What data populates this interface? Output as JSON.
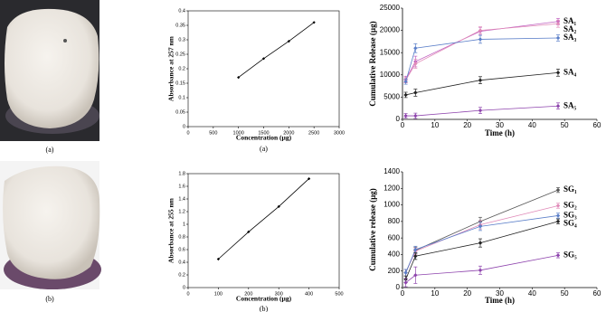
{
  "photo_captions": [
    "(a)",
    "(b)"
  ],
  "chart_data": [
    {
      "type": "line",
      "ylabel": "Absorbance at 257 nm",
      "xlabel": "Concentration (µg)",
      "caption": "(a)",
      "x": [
        1000,
        1500,
        2000,
        2500
      ],
      "series": [
        {
          "color": "#000000",
          "values": [
            0.17,
            0.235,
            0.295,
            0.36
          ]
        }
      ],
      "xlim": [
        0,
        3000
      ],
      "xticks": [
        0,
        500,
        1000,
        1500,
        2000,
        2500,
        3000
      ],
      "ylim": [
        0,
        0.4
      ],
      "yticks": [
        0,
        0.05,
        0.1,
        0.15,
        0.2,
        0.25,
        0.3,
        0.35,
        0.4
      ]
    },
    {
      "type": "line",
      "ylabel": "Absorbance at 255 nm",
      "xlabel": "Concentration (µg)",
      "caption": "(b)",
      "x": [
        100,
        200,
        300,
        400
      ],
      "series": [
        {
          "color": "#000000",
          "values": [
            0.45,
            0.88,
            1.28,
            1.72
          ]
        }
      ],
      "xlim": [
        0,
        500
      ],
      "xticks": [
        0,
        100,
        200,
        300,
        400,
        500
      ],
      "ylim": [
        0,
        1.8
      ],
      "yticks": [
        0,
        0.2,
        0.4,
        0.6,
        0.8,
        1,
        1.2,
        1.4,
        1.6,
        1.8
      ]
    },
    {
      "type": "line",
      "ylabel": "Cumulative Release (µg)",
      "xlabel": "Time (h)",
      "x": [
        1,
        4,
        24,
        48
      ],
      "series": [
        {
          "name": "SA₁",
          "color": "#c060c0",
          "values": [
            9000,
            13000,
            19800,
            22000
          ],
          "errors": [
            700,
            1200,
            900,
            700
          ]
        },
        {
          "name": "SA₂",
          "color": "#e08ab8",
          "values": [
            8800,
            12500,
            20000,
            21500
          ],
          "errors": [
            600,
            1000,
            800,
            800
          ]
        },
        {
          "name": "SA₃",
          "color": "#5b7fc9",
          "values": [
            8500,
            16000,
            18000,
            18300
          ],
          "errors": [
            600,
            1000,
            900,
            700
          ]
        },
        {
          "name": "SA₄",
          "color": "#222222",
          "values": [
            5500,
            6000,
            8800,
            10500
          ],
          "errors": [
            600,
            800,
            800,
            800
          ]
        },
        {
          "name": "SA₅",
          "color": "#8e44ad",
          "values": [
            800,
            800,
            2000,
            3000
          ],
          "errors": [
            500,
            600,
            700,
            700
          ]
        }
      ],
      "xlim": [
        0,
        60
      ],
      "xticks": [
        0,
        10,
        20,
        30,
        40,
        50,
        60
      ],
      "ylim": [
        0,
        25000
      ],
      "yticks": [
        0,
        5000,
        10000,
        15000,
        20000,
        25000
      ]
    },
    {
      "type": "line",
      "ylabel": "Cumulative release (µg)",
      "xlabel": "Time (h)",
      "x": [
        1,
        4,
        24,
        48
      ],
      "series": [
        {
          "name": "SG₁",
          "color": "#555555",
          "values": [
            180,
            450,
            800,
            1180
          ],
          "errors": [
            40,
            40,
            50,
            30
          ]
        },
        {
          "name": "SG₂",
          "color": "#e08ab8",
          "values": [
            180,
            440,
            760,
            990
          ],
          "errors": [
            40,
            40,
            50,
            30
          ]
        },
        {
          "name": "SG₃",
          "color": "#5b7fc9",
          "values": [
            180,
            460,
            740,
            870
          ],
          "errors": [
            40,
            40,
            50,
            30
          ]
        },
        {
          "name": "SG₄",
          "color": "#222222",
          "values": [
            100,
            380,
            540,
            800
          ],
          "errors": [
            40,
            40,
            50,
            30
          ]
        },
        {
          "name": "SG₅",
          "color": "#8e44ad",
          "values": [
            60,
            150,
            210,
            390
          ],
          "errors": [
            50,
            100,
            50,
            30
          ]
        }
      ],
      "xlim": [
        0,
        60
      ],
      "xticks": [
        0,
        10,
        20,
        30,
        40,
        50,
        60
      ],
      "ylim": [
        0,
        1400
      ],
      "yticks": [
        0,
        200,
        400,
        600,
        800,
        1000,
        1200,
        1400
      ]
    }
  ]
}
